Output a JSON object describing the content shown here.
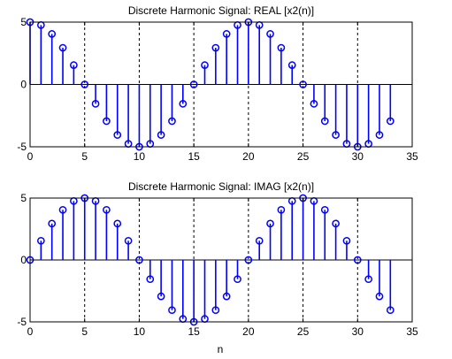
{
  "chart_data": [
    {
      "type": "stem",
      "title": "Discrete Harmonic Signal: REAL [x2(n)]",
      "xlabel": "",
      "ylabel": "",
      "xlim": [
        0,
        35
      ],
      "ylim": [
        -5,
        5
      ],
      "xticks": [
        0,
        5,
        10,
        15,
        20,
        25,
        30,
        35
      ],
      "yticks": [
        -5,
        0,
        5
      ],
      "grid": "x",
      "x": [
        0,
        1,
        2,
        3,
        4,
        5,
        6,
        7,
        8,
        9,
        10,
        11,
        12,
        13,
        14,
        15,
        16,
        17,
        18,
        19,
        20,
        21,
        22,
        23,
        24,
        25,
        26,
        27,
        28,
        29,
        30,
        31,
        32,
        33
      ],
      "values": [
        5,
        4.76,
        4.05,
        2.94,
        1.55,
        0,
        -1.55,
        -2.94,
        -4.05,
        -4.76,
        -5,
        -4.76,
        -4.05,
        -2.94,
        -1.55,
        0,
        1.55,
        2.94,
        4.05,
        4.76,
        5,
        4.76,
        4.05,
        2.94,
        1.55,
        0,
        -1.55,
        -2.94,
        -4.05,
        -4.76,
        -5,
        -4.76,
        -4.05,
        -2.94
      ]
    },
    {
      "type": "stem",
      "title": "Discrete Harmonic Signal: IMAG [x2(n)]",
      "xlabel": "n",
      "ylabel": "",
      "xlim": [
        0,
        35
      ],
      "ylim": [
        -5,
        5
      ],
      "xticks": [
        0,
        5,
        10,
        15,
        20,
        25,
        30,
        35
      ],
      "yticks": [
        -5,
        0,
        5
      ],
      "grid": "x",
      "x": [
        0,
        1,
        2,
        3,
        4,
        5,
        6,
        7,
        8,
        9,
        10,
        11,
        12,
        13,
        14,
        15,
        16,
        17,
        18,
        19,
        20,
        21,
        22,
        23,
        24,
        25,
        26,
        27,
        28,
        29,
        30,
        31,
        32,
        33
      ],
      "values": [
        0,
        1.55,
        2.94,
        4.05,
        4.76,
        5,
        4.76,
        4.05,
        2.94,
        1.55,
        0,
        -1.55,
        -2.94,
        -4.05,
        -4.76,
        -5,
        -4.76,
        -4.05,
        -2.94,
        -1.55,
        0,
        1.55,
        2.94,
        4.05,
        4.76,
        5,
        4.76,
        4.05,
        2.94,
        1.55,
        0,
        -1.55,
        -2.94,
        -4.05
      ]
    }
  ],
  "colors": {
    "stem": "#0000ff",
    "axis": "#000000",
    "grid": "#000000",
    "background": "#ffffff"
  }
}
